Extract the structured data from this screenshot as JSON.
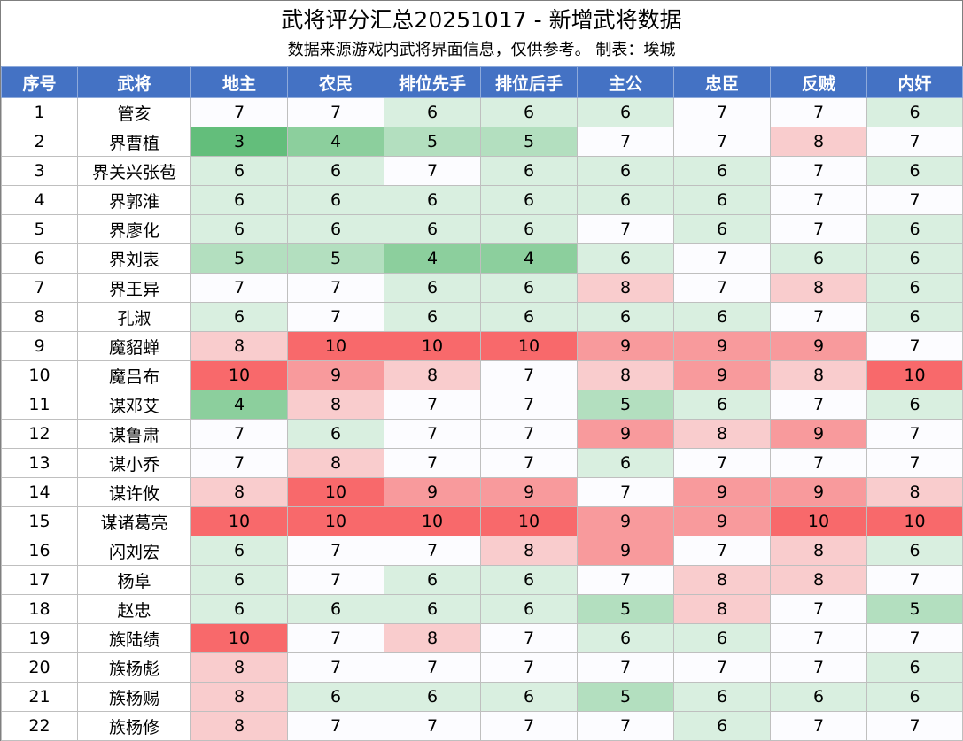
{
  "title": "武将评分汇总20251017 - 新增武将数据",
  "subtitle": "数据来源游戏内武将界面信息，仅供参考。 制表：埃城",
  "columns": [
    "序号",
    "武将",
    "地主",
    "农民",
    "排位先手",
    "排位后手",
    "主公",
    "忠臣",
    "反贼",
    "内奸"
  ],
  "score_colors": {
    "3": "#63be7b",
    "4": "#8ccf9d",
    "5": "#b3dfbf",
    "6": "#d9efe0",
    "7": "#fcfcff",
    "8": "#f9cccd",
    "9": "#f89a9c",
    "10": "#f8696b"
  },
  "rows": [
    {
      "id": "1",
      "name": "管亥",
      "scores": [
        7,
        7,
        6,
        6,
        6,
        7,
        7,
        6
      ]
    },
    {
      "id": "2",
      "name": "界曹植",
      "scores": [
        3,
        4,
        5,
        5,
        7,
        7,
        8,
        7
      ]
    },
    {
      "id": "3",
      "name": "界关兴张苞",
      "scores": [
        6,
        6,
        7,
        6,
        6,
        6,
        7,
        6
      ]
    },
    {
      "id": "4",
      "name": "界郭淮",
      "scores": [
        6,
        6,
        6,
        6,
        6,
        6,
        7,
        7
      ]
    },
    {
      "id": "5",
      "name": "界廖化",
      "scores": [
        6,
        6,
        6,
        6,
        7,
        6,
        7,
        6
      ]
    },
    {
      "id": "6",
      "name": "界刘表",
      "scores": [
        5,
        5,
        4,
        4,
        6,
        7,
        6,
        6
      ]
    },
    {
      "id": "7",
      "name": "界王异",
      "scores": [
        7,
        7,
        6,
        6,
        8,
        7,
        8,
        6
      ]
    },
    {
      "id": "8",
      "name": "孔淑",
      "scores": [
        6,
        7,
        6,
        6,
        6,
        6,
        7,
        6
      ]
    },
    {
      "id": "9",
      "name": "魔貂蝉",
      "scores": [
        8,
        10,
        10,
        10,
        9,
        9,
        9,
        7
      ]
    },
    {
      "id": "10",
      "name": "魔吕布",
      "scores": [
        10,
        9,
        8,
        7,
        8,
        9,
        8,
        10
      ]
    },
    {
      "id": "11",
      "name": "谋邓艾",
      "scores": [
        4,
        8,
        7,
        7,
        5,
        6,
        7,
        6
      ]
    },
    {
      "id": "12",
      "name": "谋鲁肃",
      "scores": [
        7,
        6,
        7,
        7,
        9,
        8,
        9,
        7
      ]
    },
    {
      "id": "13",
      "name": "谋小乔",
      "scores": [
        7,
        8,
        7,
        7,
        6,
        7,
        7,
        7
      ]
    },
    {
      "id": "14",
      "name": "谋许攸",
      "scores": [
        8,
        10,
        9,
        9,
        7,
        9,
        9,
        8
      ]
    },
    {
      "id": "15",
      "name": "谋诸葛亮",
      "scores": [
        10,
        10,
        10,
        10,
        9,
        9,
        10,
        10
      ]
    },
    {
      "id": "16",
      "name": "闪刘宏",
      "scores": [
        6,
        7,
        7,
        8,
        9,
        7,
        8,
        6
      ]
    },
    {
      "id": "17",
      "name": "杨阜",
      "scores": [
        6,
        7,
        6,
        6,
        7,
        8,
        8,
        7
      ]
    },
    {
      "id": "18",
      "name": "赵忠",
      "scores": [
        6,
        6,
        6,
        6,
        5,
        8,
        7,
        5
      ]
    },
    {
      "id": "19",
      "name": "族陆绩",
      "scores": [
        10,
        7,
        8,
        7,
        6,
        6,
        7,
        7
      ]
    },
    {
      "id": "20",
      "name": "族杨彪",
      "scores": [
        8,
        7,
        7,
        7,
        7,
        7,
        7,
        6
      ]
    },
    {
      "id": "21",
      "name": "族杨赐",
      "scores": [
        8,
        6,
        6,
        6,
        5,
        6,
        6,
        6
      ]
    },
    {
      "id": "22",
      "name": "族杨修",
      "scores": [
        8,
        7,
        7,
        7,
        7,
        6,
        7,
        7
      ]
    }
  ]
}
